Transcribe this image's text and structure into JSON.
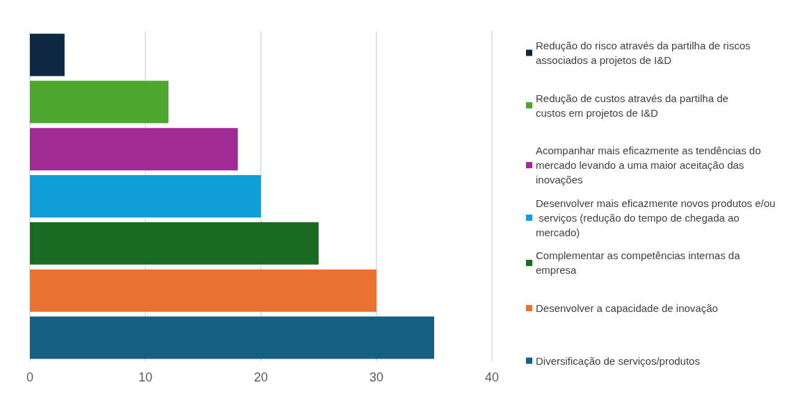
{
  "chart_data": {
    "type": "bar",
    "orientation": "horizontal",
    "categories": [
      null,
      null,
      null,
      null,
      null,
      null,
      null
    ],
    "series": [
      {
        "name": "Redução do risco através da partilha de riscos associados a projetos de I&D",
        "color": "#0e2841",
        "values": [
          3,
          null,
          null,
          null,
          null,
          null,
          null
        ]
      },
      {
        "name": "Redução de custos através da partilha de custos em projetos de I&D",
        "color": "#4ea72e",
        "values": [
          null,
          12,
          null,
          null,
          null,
          null,
          null
        ]
      },
      {
        "name": "Acompanhar mais eficazmente as tendências do mercado levando a uma maior aceitação das inovações",
        "color": "#a02b93",
        "values": [
          null,
          null,
          18,
          null,
          null,
          null,
          null
        ]
      },
      {
        "name": "Desenvolver mais eficazmente novos produtos e/ou serviços (redução do tempo de chegada ao mercado)",
        "color": "#0f9ed5",
        "values": [
          null,
          null,
          null,
          20,
          null,
          null,
          null
        ]
      },
      {
        "name": "Complementar as competências internas da empresa",
        "color": "#196b24",
        "values": [
          null,
          null,
          null,
          null,
          25,
          null,
          null
        ]
      },
      {
        "name": "Desenvolver a capacidade de inovação",
        "color": "#e97132",
        "values": [
          null,
          null,
          null,
          null,
          null,
          30,
          null
        ]
      },
      {
        "name": "Diversificação de serviços/produtos",
        "color": "#156082",
        "values": [
          null,
          null,
          null,
          null,
          null,
          null,
          35
        ]
      }
    ],
    "xlim": [
      0,
      40
    ],
    "xticks": [
      0,
      10,
      20,
      30,
      40
    ],
    "grid": "x",
    "legend": "right"
  }
}
